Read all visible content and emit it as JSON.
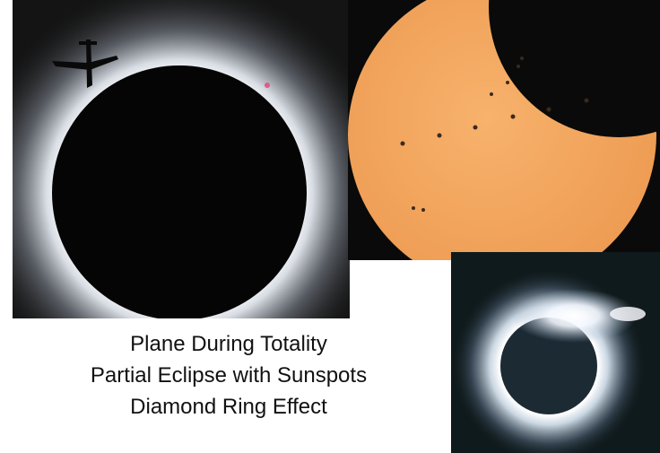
{
  "captions": [
    "Plane During Totality",
    "Partial Eclipse with Sunspots",
    "Diamond Ring Effect"
  ]
}
